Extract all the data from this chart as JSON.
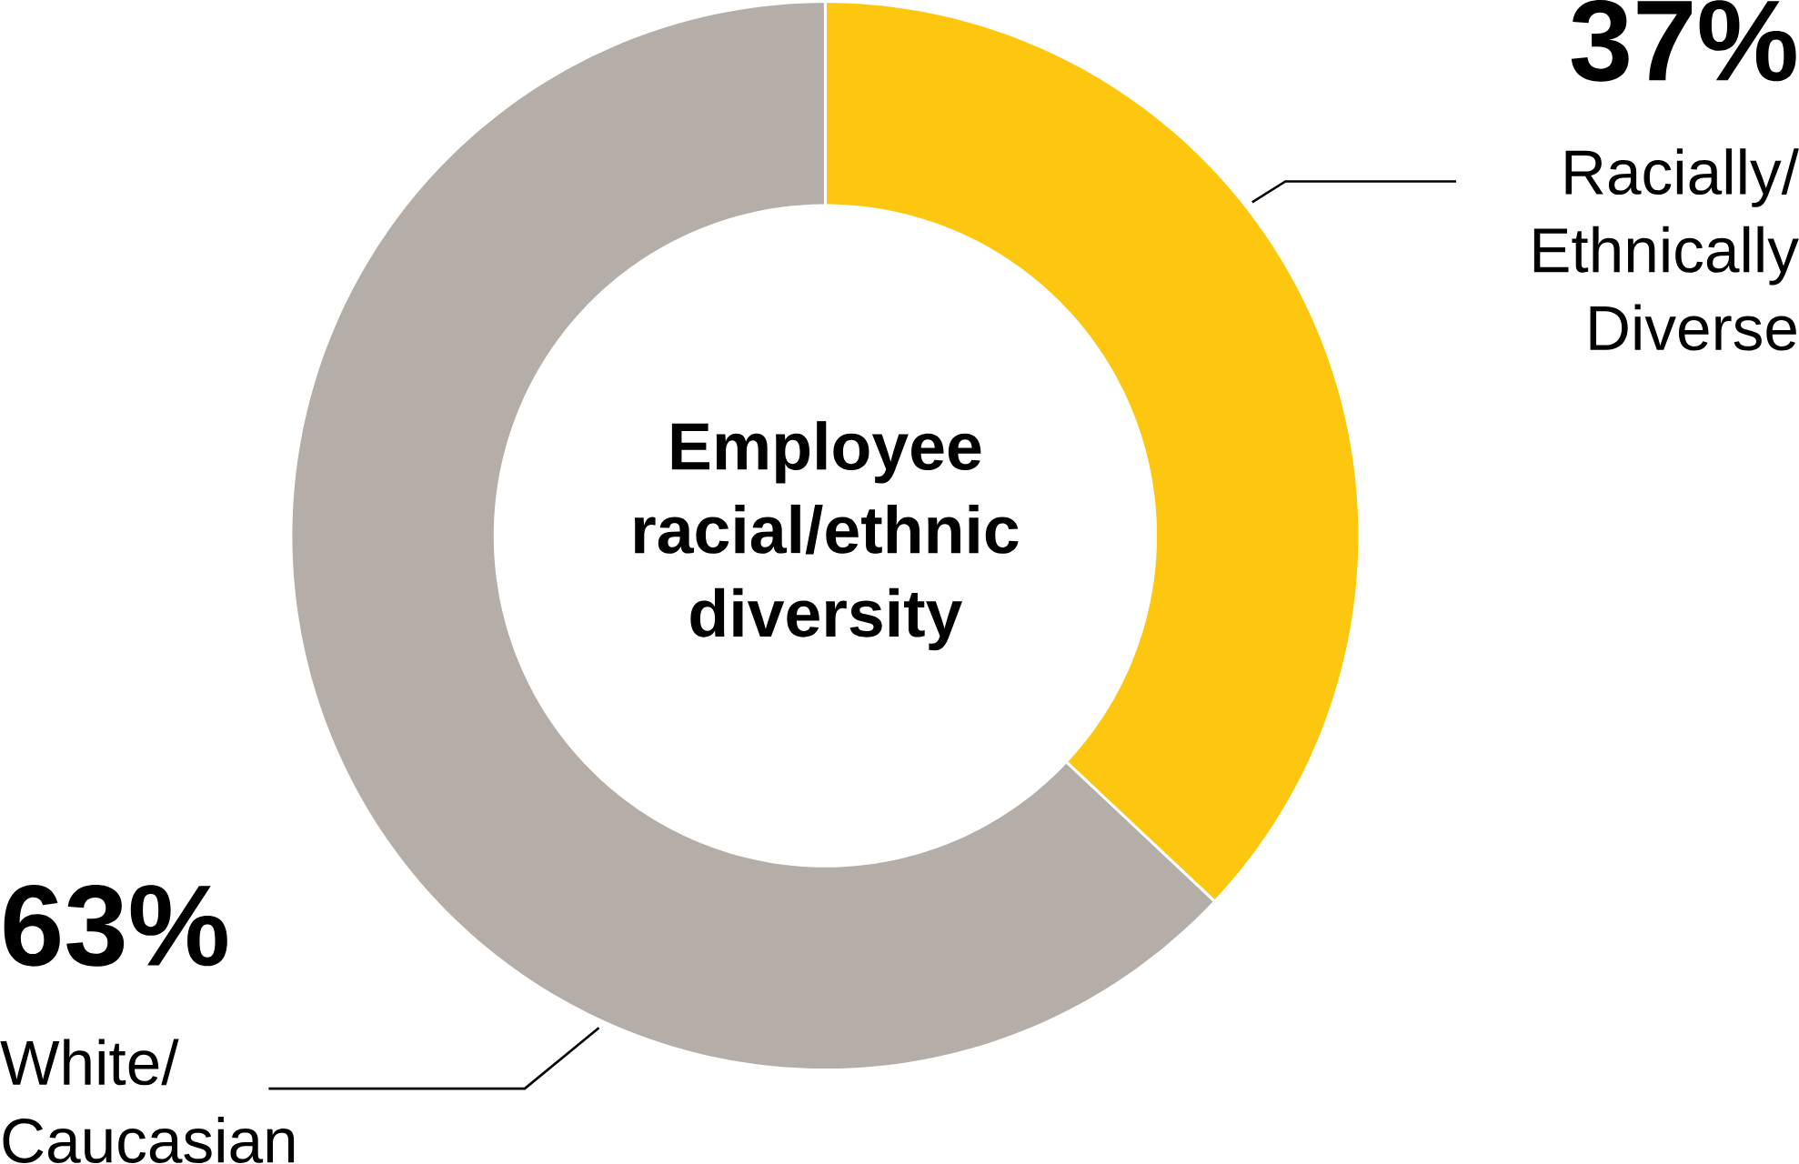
{
  "chart_data": {
    "type": "donut",
    "title": "Employee racial/ethnic diversity",
    "categories": [
      "Racially/ Ethnically Diverse",
      "White/ Caucasian"
    ],
    "values": [
      37,
      63
    ],
    "colors": [
      "#fcc70e",
      "#b5ada7"
    ],
    "value_labels": [
      "37%",
      "63%"
    ]
  }
}
